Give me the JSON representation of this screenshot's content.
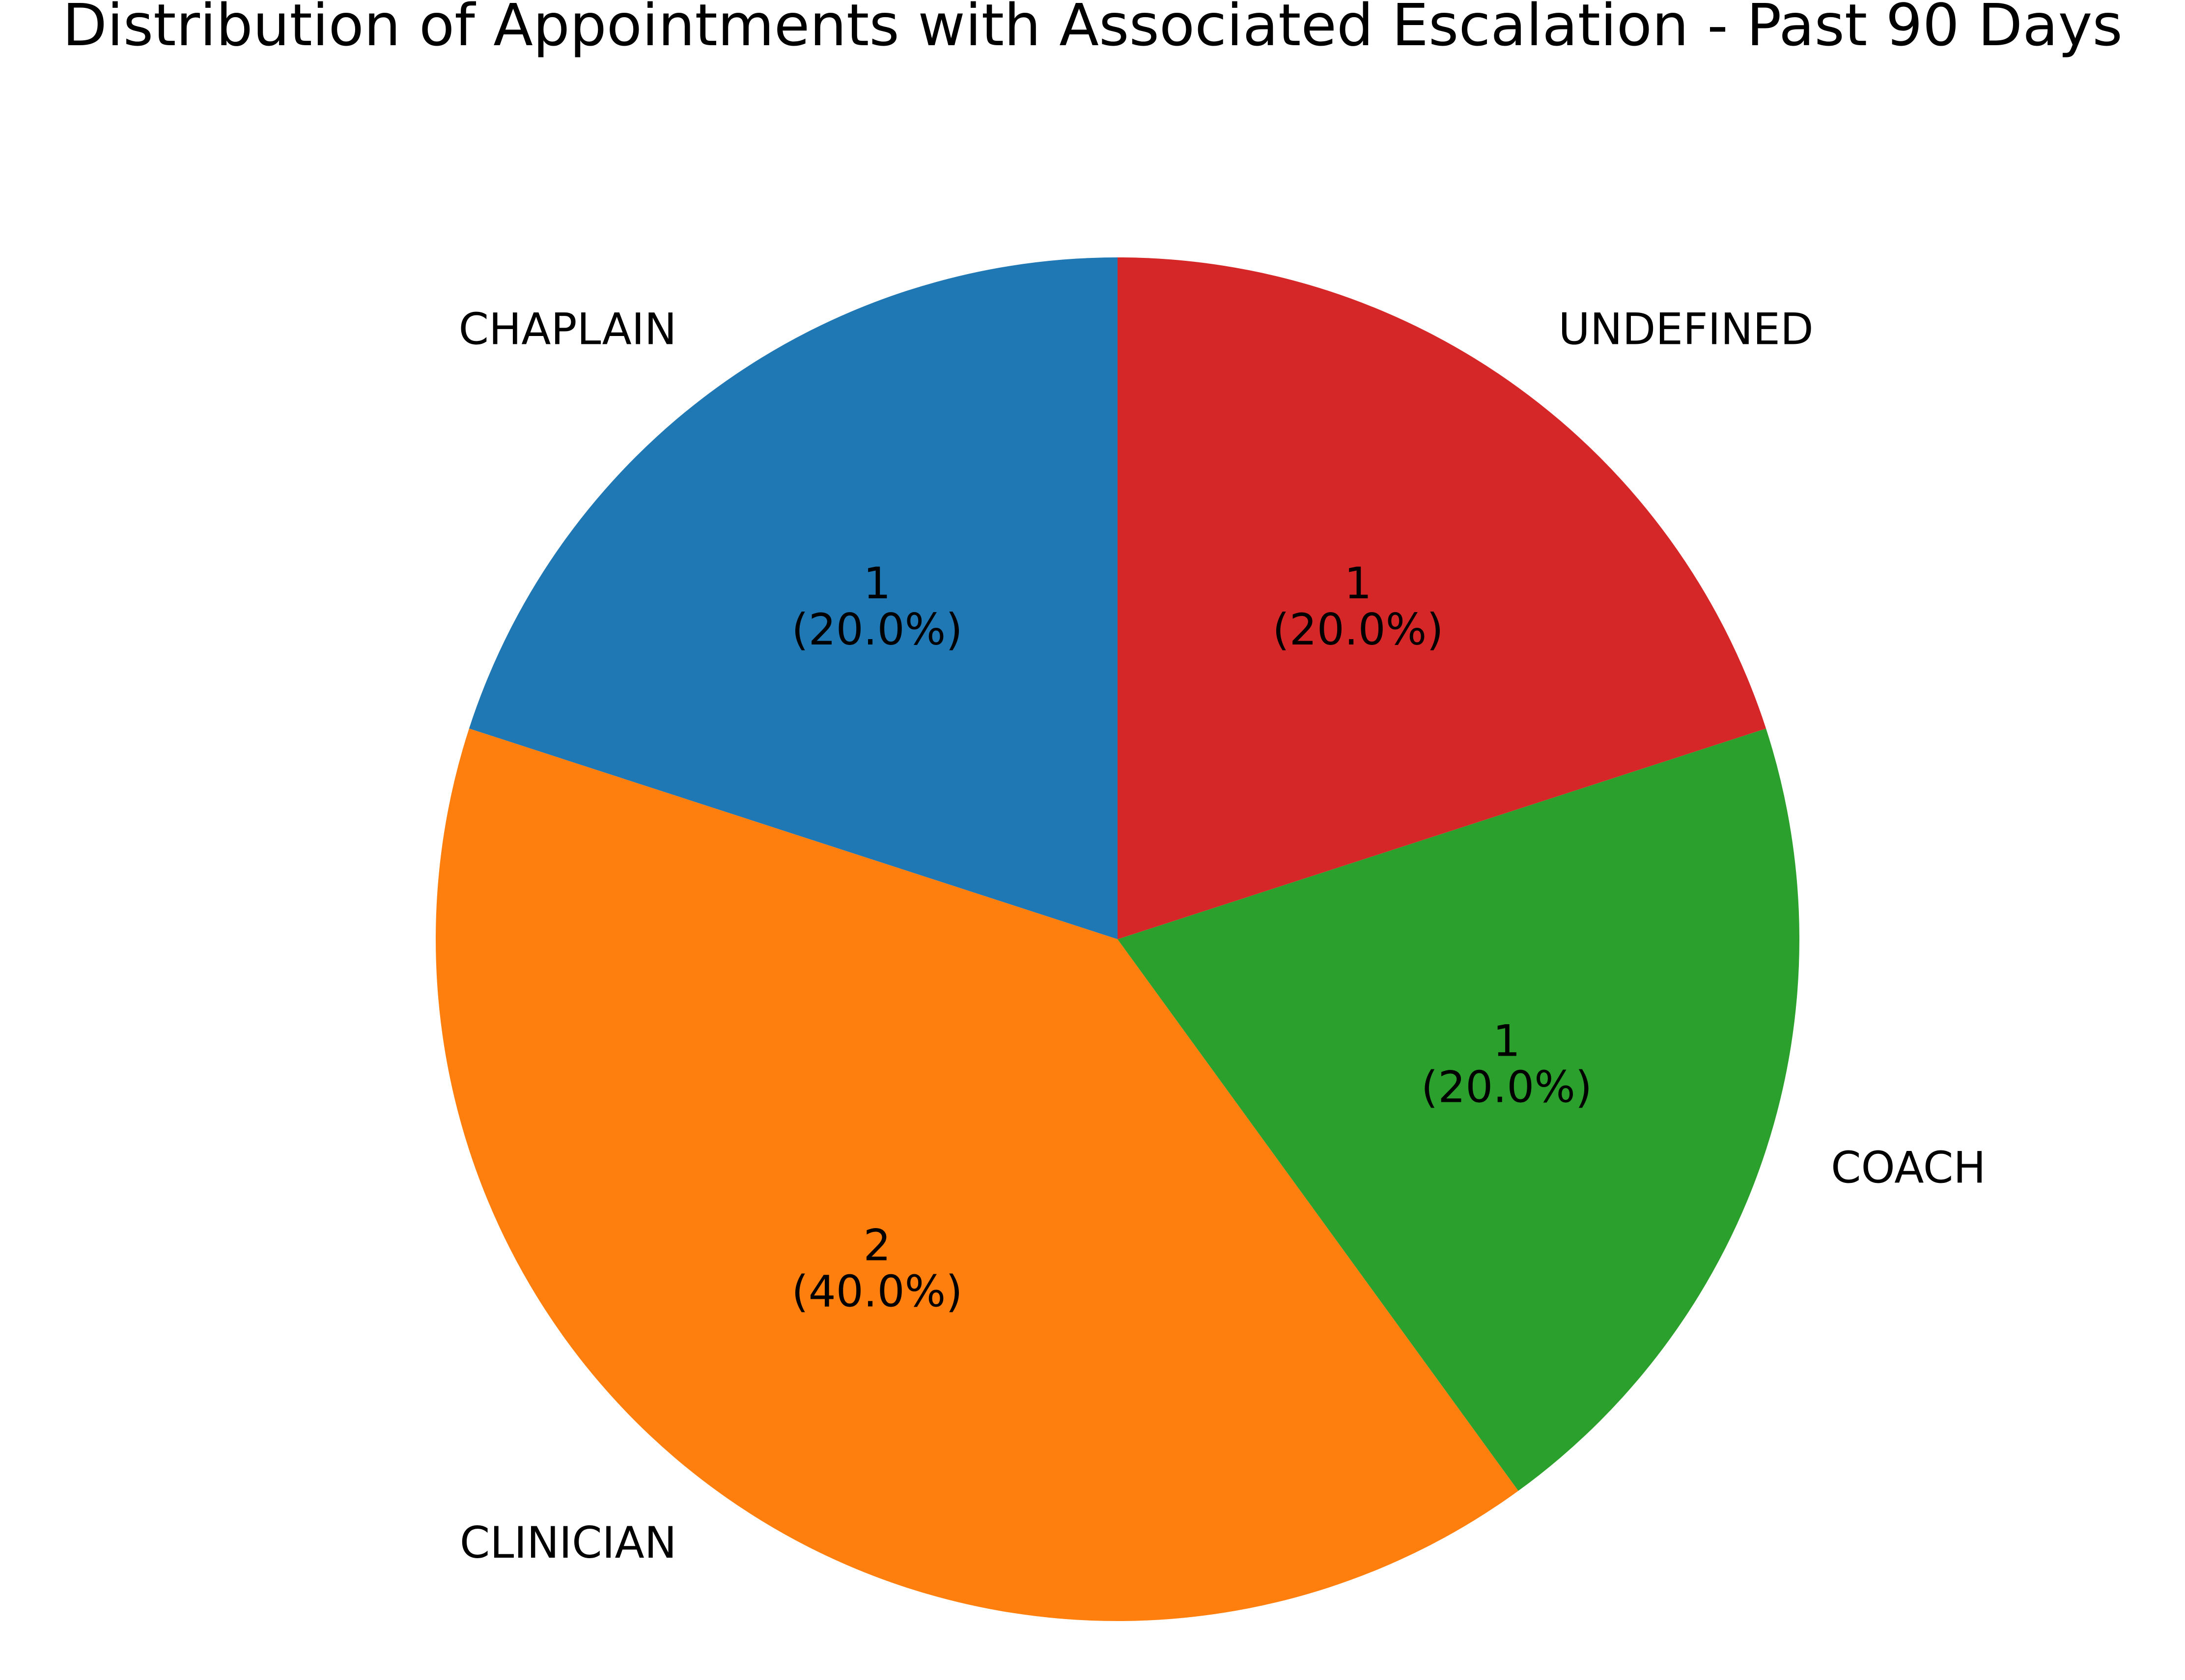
{
  "chart_data": {
    "type": "pie",
    "title": "Distribution of Appointments with Associated Escalation - Past 90 Days",
    "slices": [
      {
        "label": "CHAPLAIN",
        "value": 1,
        "value_text": "1",
        "percent_text": "(20.0%)",
        "color": "#1f77b4"
      },
      {
        "label": "CLINICIAN",
        "value": 2,
        "value_text": "2",
        "percent_text": "(40.0%)",
        "color": "#ff7f0e"
      },
      {
        "label": "COACH",
        "value": 1,
        "value_text": "1",
        "percent_text": "(20.0%)",
        "color": "#2ca02c"
      },
      {
        "label": "UNDEFINED",
        "value": 1,
        "value_text": "1",
        "percent_text": "(20.0%)",
        "color": "#d62728"
      }
    ],
    "start_angle_deg": 90,
    "direction": "counterclockwise",
    "legend": "none"
  }
}
